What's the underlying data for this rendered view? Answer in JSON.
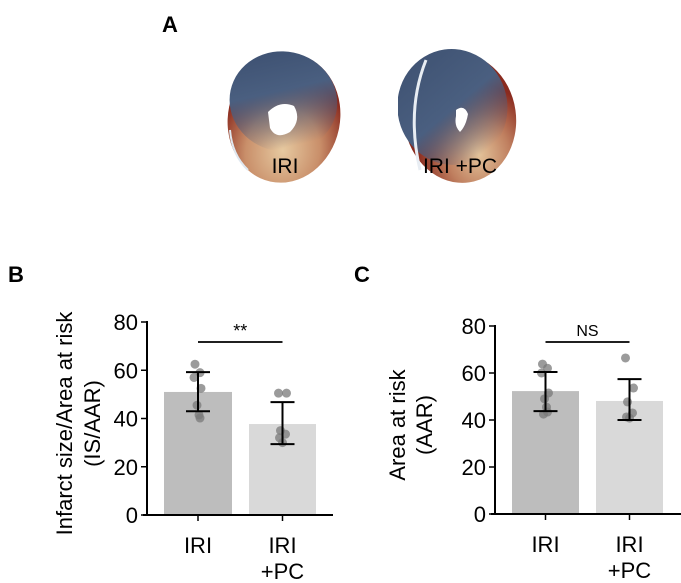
{
  "panels": {
    "A": {
      "letter": "A",
      "images": [
        {
          "label": "IRI",
          "description": "heart slice stained (blue viable, pale/red infarct)"
        },
        {
          "label": "IRI +PC",
          "description": "heart slice stained (blue viable, pale/red infarct)"
        }
      ]
    },
    "B": {
      "letter": "B"
    },
    "C": {
      "letter": "C"
    }
  },
  "colors": {
    "bar_iri": "#bdbdbd",
    "bar_iri_pc": "#d9d9d9",
    "points": "#7a7a7a",
    "axis": "#000000"
  },
  "chart_data": [
    {
      "type": "bar",
      "panel": "B",
      "title": "",
      "xlabel": "",
      "ylabel": "Infarct size/Area at risk (IS/AAR)",
      "ylabel_lines": [
        "Infarct size/Area at risk",
        "(IS/AAR)"
      ],
      "categories": [
        "IRI",
        "IRI +PC"
      ],
      "category_lines": [
        [
          "IRI"
        ],
        [
          "IRI",
          "+PC"
        ]
      ],
      "values": [
        51,
        37.7
      ],
      "error": [
        [
          43,
          59.2
        ],
        [
          29.4,
          46.8
        ]
      ],
      "points": [
        [
          62.5,
          59,
          57,
          52.5,
          45.5,
          41.5,
          40.2
        ],
        [
          50.5,
          50.5,
          35,
          33.5,
          32,
          30
        ]
      ],
      "ylim": [
        0,
        80
      ],
      "yticks": [
        0,
        20,
        40,
        60,
        80
      ],
      "grid": false,
      "significance": {
        "label": "**",
        "between": [
          0,
          1
        ]
      }
    },
    {
      "type": "bar",
      "panel": "C",
      "title": "",
      "xlabel": "",
      "ylabel": "Area at risk (AAR)",
      "ylabel_lines": [
        "Area at risk",
        "(AAR)"
      ],
      "categories": [
        "IRI",
        "IRI +PC"
      ],
      "category_lines": [
        [
          "IRI"
        ],
        [
          "IRI",
          "+PC"
        ]
      ],
      "values": [
        52.3,
        48.1
      ],
      "error": [
        [
          43.8,
          60.4
        ],
        [
          40,
          57.4
        ]
      ],
      "points": [
        [
          63.8,
          62,
          60,
          51.5,
          49,
          45.5,
          43.4,
          42.5
        ],
        [
          66.4,
          53.6,
          47.7,
          43,
          41.3,
          40.8
        ]
      ],
      "ylim": [
        0,
        80
      ],
      "yticks": [
        0,
        20,
        40,
        60,
        80
      ],
      "grid": false,
      "significance": {
        "label": "NS",
        "between": [
          0,
          1
        ]
      }
    }
  ]
}
